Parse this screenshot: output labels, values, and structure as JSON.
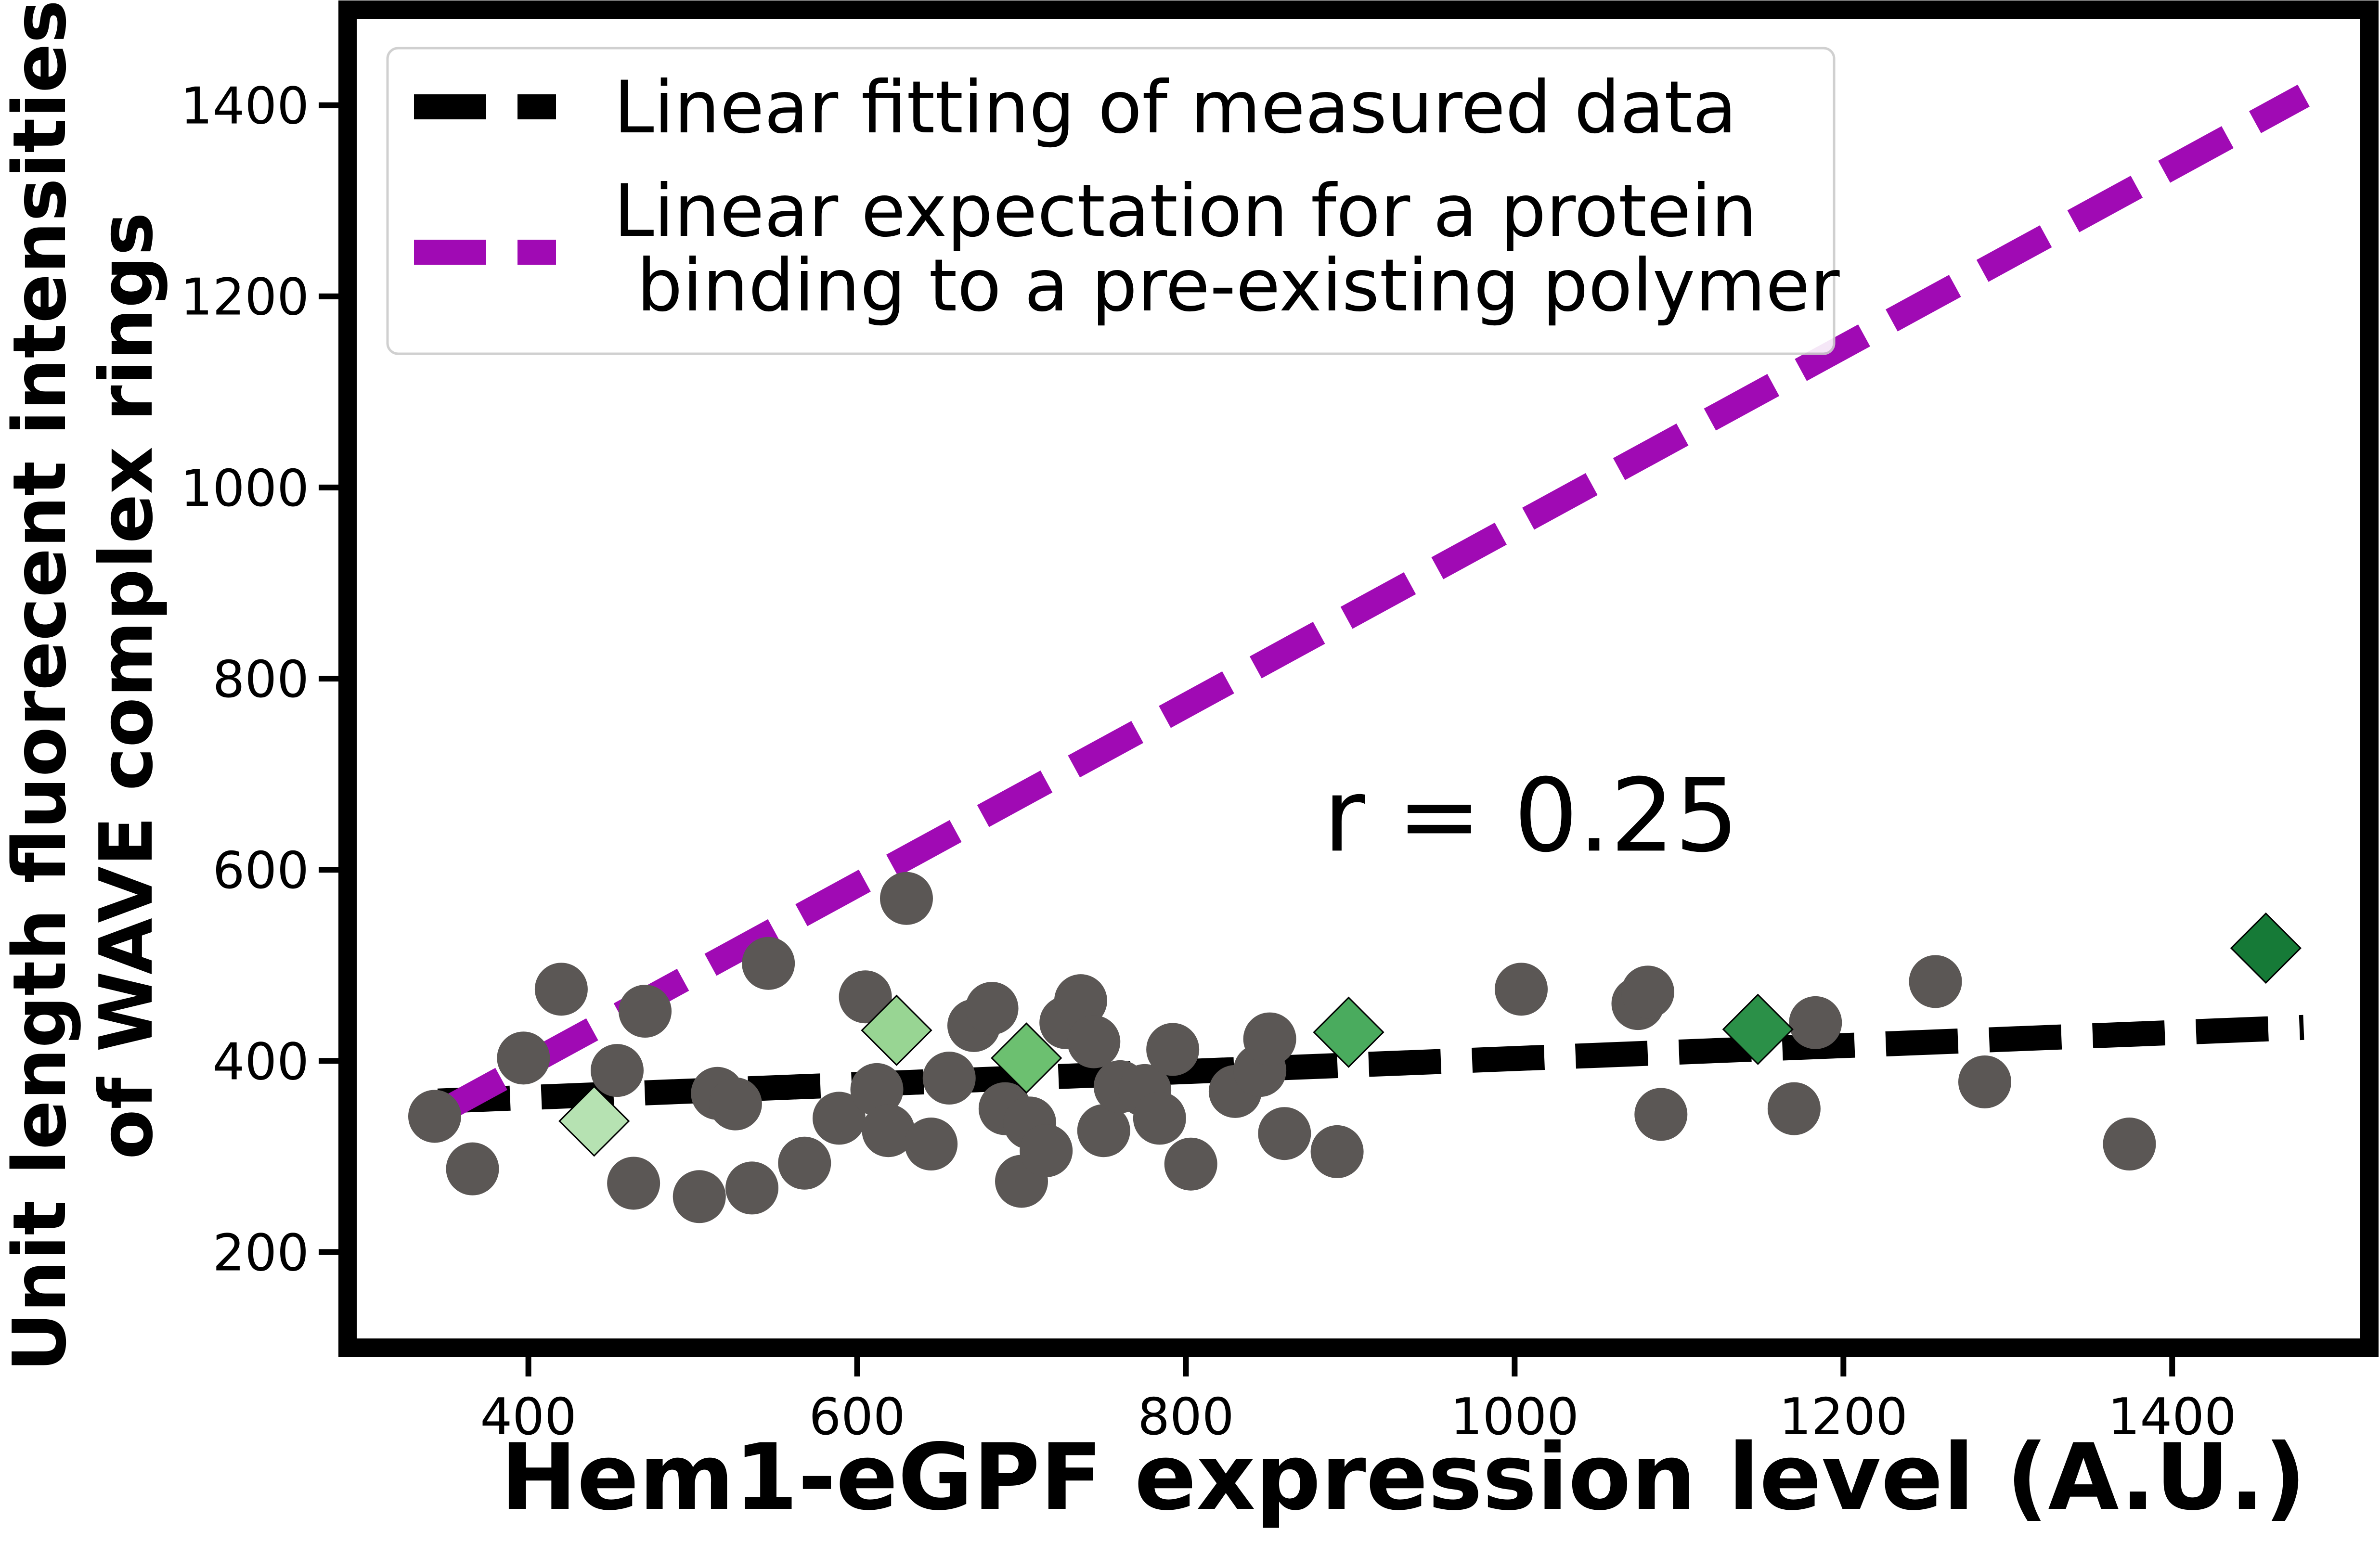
{
  "chart_data": {
    "type": "scatter",
    "xlabel": "Hem1-eGPF expression level (A.U.)",
    "ylabel_lines": [
      "Unit length fluorecent intensities",
      "of WAVE complex rings"
    ],
    "xlim": [
      290,
      1520
    ],
    "ylim": [
      100,
      1500
    ],
    "xticks": [
      400,
      600,
      800,
      1000,
      1200,
      1400
    ],
    "yticks": [
      200,
      400,
      600,
      800,
      1000,
      1200,
      1400
    ],
    "annotation": {
      "text": "r = 0.25",
      "x": 1010,
      "y": 620
    },
    "legend": {
      "placement": "top-left",
      "entries": [
        {
          "lines": [
            "Linear fitting of measured data"
          ],
          "color": "#000000"
        },
        {
          "lines": [
            "Linear expectation for a protein",
            " binding to a pre-existing polymer"
          ],
          "color": "#a00ab4"
        }
      ]
    },
    "lines": [
      {
        "name": "Linear fitting of measured data",
        "color": "#000000",
        "points": [
          [
            345,
            358
          ],
          [
            1480,
            435
          ]
        ]
      },
      {
        "name": "Linear expectation for a protein binding to a pre-existing polymer",
        "color": "#a00ab4",
        "points": [
          [
            345,
            345
          ],
          [
            1480,
            1410
          ]
        ]
      }
    ],
    "circles": {
      "color": "#5b5755",
      "points": [
        [
          343,
          342
        ],
        [
          366,
          287
        ],
        [
          397,
          403
        ],
        [
          420,
          475
        ],
        [
          454,
          390
        ],
        [
          464,
          272
        ],
        [
          471,
          452
        ],
        [
          504,
          258
        ],
        [
          515,
          366
        ],
        [
          526,
          355
        ],
        [
          536,
          267
        ],
        [
          546,
          502
        ],
        [
          568,
          293
        ],
        [
          589,
          340
        ],
        [
          605,
          467
        ],
        [
          612,
          370
        ],
        [
          619,
          327
        ],
        [
          630,
          570
        ],
        [
          645,
          313
        ],
        [
          656,
          382
        ],
        [
          671,
          437
        ],
        [
          682,
          455
        ],
        [
          690,
          350
        ],
        [
          700,
          274
        ],
        [
          705,
          335
        ],
        [
          715,
          306
        ],
        [
          727,
          440
        ],
        [
          736,
          463
        ],
        [
          744,
          420
        ],
        [
          750,
          327
        ],
        [
          760,
          373
        ],
        [
          775,
          369
        ],
        [
          784,
          340
        ],
        [
          792,
          412
        ],
        [
          803,
          292
        ],
        [
          830,
          368
        ],
        [
          845,
          390
        ],
        [
          851,
          423
        ],
        [
          860,
          324
        ],
        [
          892,
          305
        ],
        [
          1004,
          475
        ],
        [
          1075,
          460
        ],
        [
          1081,
          472
        ],
        [
          1089,
          344
        ],
        [
          1170,
          350
        ],
        [
          1183,
          440
        ],
        [
          1256,
          483
        ],
        [
          1286,
          378
        ],
        [
          1374,
          313
        ]
      ]
    },
    "diamonds": {
      "points": [
        {
          "x": 440,
          "y": 337,
          "color": "#b6e2b2"
        },
        {
          "x": 624,
          "y": 432,
          "color": "#98d593"
        },
        {
          "x": 703,
          "y": 403,
          "color": "#6cc070"
        },
        {
          "x": 899,
          "y": 430,
          "color": "#4aab5e"
        },
        {
          "x": 1148,
          "y": 433,
          "color": "#2b9048"
        },
        {
          "x": 1457,
          "y": 518,
          "color": "#167a37"
        }
      ]
    }
  }
}
